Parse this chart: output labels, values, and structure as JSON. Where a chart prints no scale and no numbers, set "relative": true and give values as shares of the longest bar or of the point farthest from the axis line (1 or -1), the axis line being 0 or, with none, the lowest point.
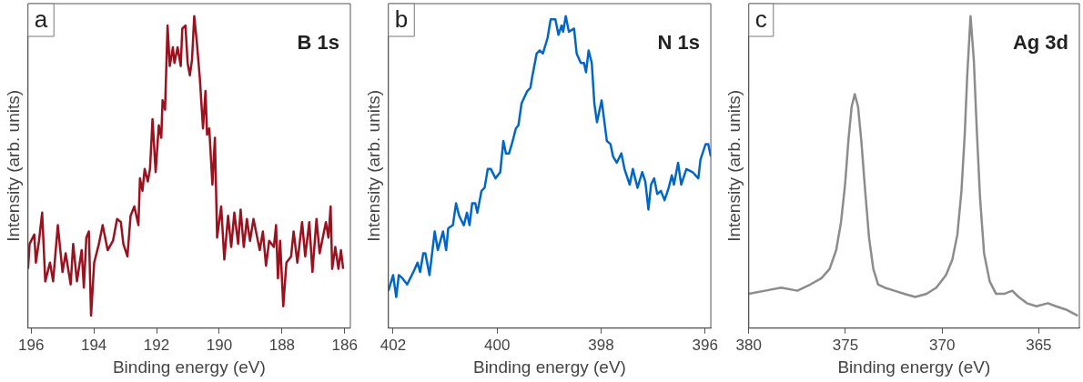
{
  "chart_data": [
    {
      "type": "line",
      "xlabel": "Binding energy (eV)",
      "ylabel": "Intensity (arb. units)",
      "relative": true,
      "color": "#9b111e",
      "annotations": [
        "a",
        "B 1s"
      ],
      "xlim": [
        196.1,
        185.82
      ],
      "xticks": [
        196,
        194,
        192,
        190,
        188,
        186
      ],
      "x": [
        196.1,
        196.05,
        195.9,
        195.85,
        195.75,
        195.65,
        195.55,
        195.4,
        195.3,
        195.15,
        195.0,
        194.9,
        194.74,
        194.66,
        194.54,
        194.39,
        194.32,
        194.24,
        194.16,
        194.09,
        193.99,
        193.84,
        193.72,
        193.56,
        193.39,
        193.26,
        193.14,
        193.06,
        192.93,
        192.83,
        192.71,
        192.58,
        192.53,
        192.45,
        192.38,
        192.28,
        192.21,
        192.13,
        192.03,
        191.93,
        191.85,
        191.81,
        191.73,
        191.65,
        191.58,
        191.48,
        191.43,
        191.33,
        191.23,
        191.18,
        191.08,
        191.01,
        190.94,
        190.87,
        190.8,
        190.72,
        190.62,
        190.52,
        190.44,
        190.39,
        190.32,
        190.22,
        190.14,
        190.07,
        189.94,
        189.84,
        189.72,
        189.62,
        189.52,
        189.4,
        189.32,
        189.22,
        189.12,
        189.02,
        188.91,
        188.81,
        188.71,
        188.61,
        188.51,
        188.41,
        188.26,
        188.19,
        188.13,
        188.06,
        187.96,
        187.86,
        187.71,
        187.63,
        187.51,
        187.36,
        187.26,
        187.13,
        187.03,
        186.9,
        186.8,
        186.72,
        186.6,
        186.52,
        186.45,
        186.4,
        186.3,
        186.2,
        186.12,
        186.05
      ],
      "values": [
        0.19,
        0.27,
        0.3,
        0.21,
        0.28,
        0.37,
        0.15,
        0.21,
        0.15,
        0.33,
        0.18,
        0.24,
        0.14,
        0.27,
        0.15,
        0.25,
        0.13,
        0.29,
        0.31,
        0.04,
        0.21,
        0.27,
        0.33,
        0.25,
        0.28,
        0.35,
        0.34,
        0.27,
        0.23,
        0.36,
        0.39,
        0.33,
        0.48,
        0.44,
        0.51,
        0.47,
        0.51,
        0.67,
        0.5,
        0.65,
        0.61,
        0.73,
        0.7,
        0.97,
        0.84,
        0.9,
        0.85,
        0.9,
        0.84,
        0.96,
        0.97,
        0.85,
        0.81,
        0.86,
        1.0,
        0.92,
        0.8,
        0.64,
        0.76,
        0.62,
        0.64,
        0.46,
        0.61,
        0.29,
        0.39,
        0.22,
        0.36,
        0.26,
        0.37,
        0.27,
        0.38,
        0.26,
        0.35,
        0.28,
        0.35,
        0.3,
        0.25,
        0.31,
        0.2,
        0.28,
        0.26,
        0.33,
        0.16,
        0.28,
        0.07,
        0.21,
        0.23,
        0.31,
        0.21,
        0.34,
        0.23,
        0.34,
        0.18,
        0.35,
        0.24,
        0.28,
        0.34,
        0.29,
        0.39,
        0.19,
        0.26,
        0.19,
        0.25,
        0.19
      ]
    },
    {
      "type": "line",
      "xlabel": "Binding energy (eV)",
      "ylabel": "Intensity (arb. units)",
      "relative": true,
      "color": "#0066cc",
      "annotations": [
        "b",
        "N 1s"
      ],
      "xlim": [
        402.09,
        395.89
      ],
      "xticks": [
        402,
        400,
        398,
        396
      ],
      "x": [
        402.09,
        402.0,
        401.94,
        401.89,
        401.82,
        401.73,
        401.67,
        401.61,
        401.53,
        401.48,
        401.42,
        401.38,
        401.3,
        401.2,
        401.14,
        401.04,
        400.98,
        400.94,
        400.85,
        400.79,
        400.73,
        400.64,
        400.58,
        400.53,
        400.48,
        400.42,
        400.38,
        400.3,
        400.24,
        400.18,
        400.12,
        400.03,
        399.94,
        399.88,
        399.83,
        399.77,
        399.7,
        399.64,
        399.59,
        399.53,
        399.42,
        399.36,
        399.32,
        399.24,
        399.18,
        399.12,
        399.03,
        398.97,
        398.88,
        398.82,
        398.76,
        398.73,
        398.68,
        398.62,
        398.52,
        398.47,
        398.39,
        398.33,
        398.29,
        398.24,
        398.18,
        398.13,
        398.08,
        397.99,
        397.89,
        397.82,
        397.77,
        397.7,
        397.61,
        397.55,
        397.45,
        397.39,
        397.3,
        397.21,
        397.15,
        397.09,
        397.04,
        396.98,
        396.92,
        396.85,
        396.78,
        396.7,
        396.64,
        396.6,
        396.52,
        396.46,
        396.36,
        396.24,
        396.13,
        396.09,
        395.99,
        395.94,
        395.89
      ],
      "values": [
        0.12,
        0.17,
        0.1,
        0.17,
        0.16,
        0.14,
        0.16,
        0.18,
        0.21,
        0.18,
        0.24,
        0.24,
        0.17,
        0.31,
        0.25,
        0.31,
        0.25,
        0.32,
        0.33,
        0.4,
        0.36,
        0.33,
        0.37,
        0.33,
        0.4,
        0.4,
        0.37,
        0.44,
        0.45,
        0.51,
        0.51,
        0.48,
        0.5,
        0.6,
        0.56,
        0.56,
        0.6,
        0.64,
        0.65,
        0.72,
        0.76,
        0.77,
        0.81,
        0.88,
        0.89,
        0.88,
        0.93,
        0.99,
        0.99,
        0.94,
        0.97,
        0.95,
        1.0,
        0.95,
        0.96,
        0.88,
        0.85,
        0.85,
        0.82,
        0.89,
        0.85,
        0.72,
        0.66,
        0.73,
        0.6,
        0.59,
        0.55,
        0.53,
        0.56,
        0.51,
        0.46,
        0.51,
        0.45,
        0.5,
        0.47,
        0.38,
        0.46,
        0.48,
        0.43,
        0.44,
        0.41,
        0.45,
        0.49,
        0.46,
        0.53,
        0.46,
        0.51,
        0.5,
        0.48,
        0.54,
        0.59,
        0.59,
        0.55
      ]
    },
    {
      "type": "line",
      "xlabel": "Binding energy (eV)",
      "ylabel": "Intensity (arb. units)",
      "relative": true,
      "color": "#8c8c8c",
      "annotations": [
        "c",
        "Ag 3d"
      ],
      "xlim": [
        380,
        362.9
      ],
      "xticks": [
        380,
        375,
        370,
        365
      ],
      "x": [
        380.0,
        379.16,
        378.33,
        377.49,
        376.82,
        376.24,
        375.82,
        375.48,
        375.23,
        375.02,
        374.85,
        374.68,
        374.52,
        374.35,
        374.18,
        373.98,
        373.78,
        373.56,
        373.31,
        372.98,
        372.47,
        371.97,
        371.39,
        370.8,
        370.3,
        369.8,
        369.47,
        369.21,
        369.0,
        368.83,
        368.7,
        368.53,
        368.36,
        368.21,
        368.04,
        367.83,
        367.54,
        367.21,
        366.79,
        366.37,
        366.04,
        365.62,
        365.12,
        364.53,
        364.11,
        363.61,
        362.98
      ],
      "values": [
        0.11,
        0.12,
        0.13,
        0.12,
        0.14,
        0.16,
        0.19,
        0.25,
        0.34,
        0.46,
        0.6,
        0.71,
        0.75,
        0.71,
        0.6,
        0.44,
        0.29,
        0.19,
        0.14,
        0.13,
        0.12,
        0.11,
        0.1,
        0.11,
        0.13,
        0.17,
        0.22,
        0.3,
        0.44,
        0.62,
        0.81,
        1.0,
        0.86,
        0.64,
        0.42,
        0.24,
        0.15,
        0.11,
        0.11,
        0.12,
        0.1,
        0.08,
        0.07,
        0.08,
        0.07,
        0.06,
        0.04
      ]
    }
  ]
}
